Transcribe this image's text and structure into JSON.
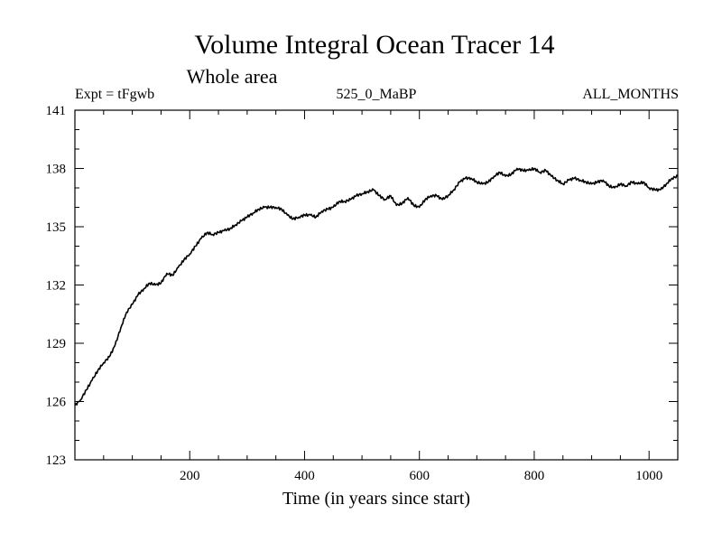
{
  "chart_data": {
    "type": "line",
    "title": "Volume Integral Ocean Tracer 14",
    "subtitle": "Whole area",
    "info_left": "Expt = tFgwb",
    "info_center": "525_0_MaBP",
    "info_right": "ALL_MONTHS",
    "xlabel": "Time (in years since start)",
    "ylabel": "",
    "xlim": [
      0,
      1050
    ],
    "ylim": [
      123,
      141
    ],
    "x_ticks": [
      200,
      400,
      600,
      800,
      1000
    ],
    "y_ticks": [
      123,
      126,
      129,
      132,
      135,
      138,
      141
    ],
    "grid": false,
    "color": "#000000",
    "series": [
      {
        "x": [
          0,
          10,
          20,
          30,
          40,
          50,
          60,
          70,
          80,
          90,
          100,
          110,
          120,
          130,
          140,
          150,
          160,
          170,
          180,
          190,
          200,
          210,
          220,
          230,
          240,
          250,
          260,
          270,
          280,
          290,
          300,
          310,
          320,
          330,
          340,
          350,
          360,
          370,
          380,
          390,
          400,
          410,
          420,
          430,
          440,
          450,
          460,
          470,
          480,
          490,
          500,
          510,
          520,
          530,
          540,
          550,
          560,
          570,
          580,
          590,
          600,
          610,
          620,
          630,
          640,
          650,
          660,
          670,
          680,
          690,
          700,
          710,
          720,
          730,
          740,
          750,
          760,
          770,
          780,
          790,
          800,
          810,
          820,
          830,
          840,
          850,
          860,
          870,
          880,
          890,
          900,
          910,
          920,
          930,
          940,
          950,
          960,
          970,
          980,
          990,
          1000,
          1010,
          1020,
          1030,
          1040,
          1050
        ],
        "values": [
          125.8,
          126.1,
          126.6,
          127.1,
          127.6,
          128.0,
          128.3,
          128.9,
          129.8,
          130.6,
          131.0,
          131.5,
          131.8,
          132.1,
          132.0,
          132.1,
          132.6,
          132.5,
          132.9,
          133.3,
          133.6,
          134.0,
          134.4,
          134.7,
          134.6,
          134.7,
          134.8,
          134.9,
          135.1,
          135.3,
          135.5,
          135.7,
          135.9,
          136.0,
          136.0,
          136.0,
          135.9,
          135.6,
          135.4,
          135.5,
          135.6,
          135.6,
          135.5,
          135.8,
          135.9,
          136.0,
          136.3,
          136.3,
          136.4,
          136.6,
          136.7,
          136.8,
          136.9,
          136.6,
          136.4,
          136.6,
          136.1,
          136.2,
          136.5,
          136.1,
          136.0,
          136.4,
          136.6,
          136.6,
          136.4,
          136.6,
          136.9,
          137.3,
          137.5,
          137.5,
          137.3,
          137.2,
          137.3,
          137.6,
          137.8,
          137.6,
          137.7,
          138.0,
          137.9,
          137.9,
          138.0,
          137.8,
          137.9,
          137.6,
          137.4,
          137.2,
          137.4,
          137.5,
          137.4,
          137.3,
          137.2,
          137.3,
          137.4,
          137.1,
          137.0,
          137.2,
          137.1,
          137.3,
          137.2,
          137.3,
          137.0,
          136.9,
          136.9,
          137.2,
          137.5,
          137.6
        ]
      }
    ]
  }
}
